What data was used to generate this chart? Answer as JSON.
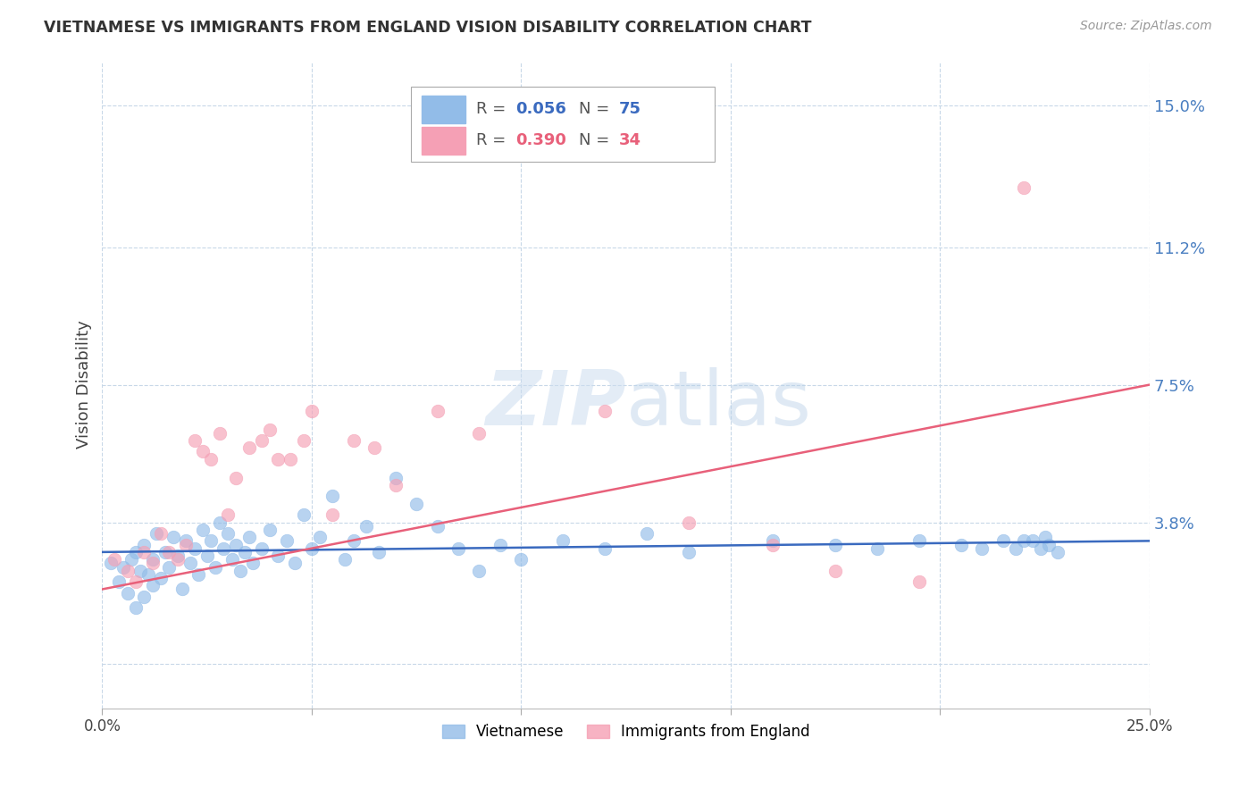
{
  "title": "VIETNAMESE VS IMMIGRANTS FROM ENGLAND VISION DISABILITY CORRELATION CHART",
  "source": "Source: ZipAtlas.com",
  "ylabel": "Vision Disability",
  "yticks": [
    0.0,
    0.038,
    0.075,
    0.112,
    0.15
  ],
  "ytick_labels": [
    "",
    "3.8%",
    "7.5%",
    "11.2%",
    "15.0%"
  ],
  "xlim": [
    0.0,
    0.25
  ],
  "ylim": [
    -0.012,
    0.162
  ],
  "background_color": "#ffffff",
  "legend1_r": "0.056",
  "legend1_n": "75",
  "legend2_r": "0.390",
  "legend2_n": "34",
  "viet_color": "#92bce8",
  "eng_color": "#f5a0b5",
  "viet_line_color": "#3a6abf",
  "eng_line_color": "#e8607a",
  "viet_scatter_x": [
    0.002,
    0.004,
    0.005,
    0.006,
    0.007,
    0.008,
    0.008,
    0.009,
    0.01,
    0.01,
    0.011,
    0.012,
    0.012,
    0.013,
    0.014,
    0.015,
    0.016,
    0.017,
    0.018,
    0.019,
    0.02,
    0.021,
    0.022,
    0.023,
    0.024,
    0.025,
    0.026,
    0.027,
    0.028,
    0.029,
    0.03,
    0.031,
    0.032,
    0.033,
    0.034,
    0.035,
    0.036,
    0.038,
    0.04,
    0.042,
    0.044,
    0.046,
    0.048,
    0.05,
    0.052,
    0.055,
    0.058,
    0.06,
    0.063,
    0.066,
    0.07,
    0.075,
    0.08,
    0.085,
    0.09,
    0.095,
    0.1,
    0.11,
    0.12,
    0.13,
    0.14,
    0.16,
    0.175,
    0.185,
    0.195,
    0.205,
    0.21,
    0.215,
    0.218,
    0.22,
    0.222,
    0.224,
    0.225,
    0.226,
    0.228
  ],
  "viet_scatter_y": [
    0.027,
    0.022,
    0.026,
    0.019,
    0.028,
    0.015,
    0.03,
    0.025,
    0.018,
    0.032,
    0.024,
    0.028,
    0.021,
    0.035,
    0.023,
    0.03,
    0.026,
    0.034,
    0.029,
    0.02,
    0.033,
    0.027,
    0.031,
    0.024,
    0.036,
    0.029,
    0.033,
    0.026,
    0.038,
    0.031,
    0.035,
    0.028,
    0.032,
    0.025,
    0.03,
    0.034,
    0.027,
    0.031,
    0.036,
    0.029,
    0.033,
    0.027,
    0.04,
    0.031,
    0.034,
    0.045,
    0.028,
    0.033,
    0.037,
    0.03,
    0.05,
    0.043,
    0.037,
    0.031,
    0.025,
    0.032,
    0.028,
    0.033,
    0.031,
    0.035,
    0.03,
    0.033,
    0.032,
    0.031,
    0.033,
    0.032,
    0.031,
    0.033,
    0.031,
    0.033,
    0.033,
    0.031,
    0.034,
    0.032,
    0.03
  ],
  "eng_scatter_x": [
    0.003,
    0.006,
    0.008,
    0.01,
    0.012,
    0.014,
    0.016,
    0.018,
    0.02,
    0.022,
    0.024,
    0.026,
    0.028,
    0.03,
    0.032,
    0.035,
    0.038,
    0.04,
    0.042,
    0.045,
    0.048,
    0.05,
    0.055,
    0.06,
    0.065,
    0.07,
    0.08,
    0.09,
    0.12,
    0.14,
    0.16,
    0.175,
    0.195,
    0.22
  ],
  "eng_scatter_y": [
    0.028,
    0.025,
    0.022,
    0.03,
    0.027,
    0.035,
    0.03,
    0.028,
    0.032,
    0.06,
    0.057,
    0.055,
    0.062,
    0.04,
    0.05,
    0.058,
    0.06,
    0.063,
    0.055,
    0.055,
    0.06,
    0.068,
    0.04,
    0.06,
    0.058,
    0.048,
    0.068,
    0.062,
    0.068,
    0.038,
    0.032,
    0.025,
    0.022,
    0.128
  ],
  "viet_line_x": [
    0.0,
    0.25
  ],
  "viet_line_y": [
    0.03,
    0.033
  ],
  "eng_line_x": [
    0.0,
    0.25
  ],
  "eng_line_y": [
    0.02,
    0.075
  ]
}
